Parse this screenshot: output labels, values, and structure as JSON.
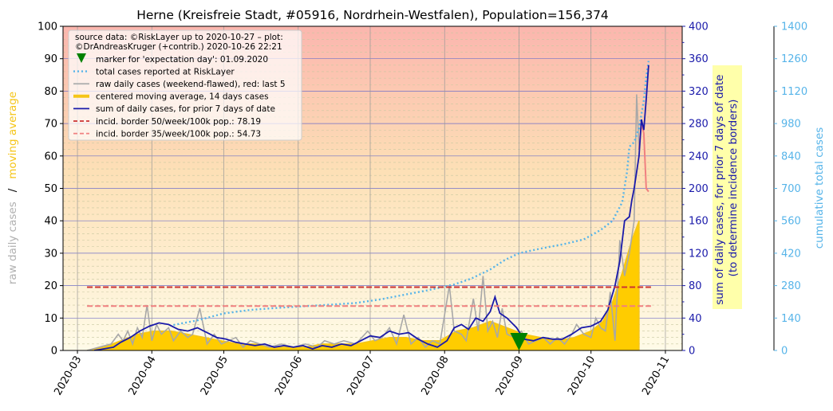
{
  "chart_data": {
    "type": "line",
    "title": "Herne (Kreisfreie Stadt, #05916, Nordrhein-Westfalen), Population=156,374",
    "xlim": [
      "2020-02-24",
      "2020-11-08"
    ],
    "x_ticks": [
      "2020-03",
      "2020-04",
      "2020-05",
      "2020-06",
      "2020-07",
      "2020-08",
      "2020-09",
      "2020-10",
      "2020-11"
    ],
    "left_axis": {
      "label_parts": [
        {
          "text": "raw daily cases",
          "color": "#b0b0b0"
        },
        {
          "text": "/",
          "color": "#000000"
        },
        {
          "text": "moving average",
          "color": "#f5c518"
        }
      ],
      "ylim": [
        0,
        100
      ],
      "ticks": [
        0,
        10,
        20,
        30,
        40,
        50,
        60,
        70,
        80,
        90,
        100
      ]
    },
    "right_axis_1": {
      "label_lines": [
        "sum of daily cases, for prior 7 days of date",
        "(to determine incidence borders)"
      ],
      "ylim": [
        0,
        400
      ],
      "ticks": [
        0,
        40,
        80,
        120,
        160,
        200,
        240,
        280,
        320,
        360,
        400
      ],
      "color": "#1a1aaa",
      "label_bg": "#ffffaa"
    },
    "right_axis_2": {
      "label": "cumulative total cases",
      "ylim": [
        0,
        1400
      ],
      "ticks": [
        0,
        140,
        280,
        420,
        560,
        700,
        840,
        980,
        1120,
        1260,
        1400
      ],
      "color": "#56b4e9"
    },
    "legend": {
      "placement": "top-left",
      "source_text": [
        "source data: ©RiskLayer up to 2020-10-27 – plot:",
        "©DrAndreasKruger (+contrib.) 2020-10-26 22:21"
      ],
      "entries": [
        {
          "label": "marker for 'expectation day': 01.09.2020",
          "kind": "marker",
          "color": "#008000"
        },
        {
          "label": "total cases reported at RiskLayer",
          "kind": "dotted",
          "color": "#56b4e9"
        },
        {
          "label": "raw daily cases (weekend-flawed), red: last 5",
          "kind": "line",
          "color": "#b0b0b0"
        },
        {
          "label": "centered moving average, 14 days cases",
          "kind": "thick",
          "color": "#f5c518"
        },
        {
          "label": "sum of daily cases, for prior 7 days of date",
          "kind": "line",
          "color": "#1a1aaa"
        },
        {
          "label": "incid. border 50/week/100k pop.: 78.19",
          "kind": "dashed",
          "color": "#cc3333"
        },
        {
          "label": "incid. border 35/week/100k pop.: 54.73",
          "kind": "dashed",
          "color": "#f08080"
        }
      ]
    },
    "incidence_borders": [
      {
        "name": "incid. border 50/week/100k pop.",
        "value": 78.19,
        "x": [
          "2020-03-05",
          "2020-10-26"
        ],
        "color": "#cc3333"
      },
      {
        "name": "incid. border 35/week/100k pop.",
        "value": 54.73,
        "x": [
          "2020-03-05",
          "2020-10-26"
        ],
        "color": "#f08080"
      }
    ],
    "expectation_marker": {
      "date": "2020-09-01",
      "value": 0
    },
    "series": [
      {
        "name": "raw daily cases (weekend-flawed), red: last 5",
        "axis": "left",
        "color": "#b0b0b0",
        "points": [
          [
            "2020-03-05",
            0
          ],
          [
            "2020-03-10",
            1
          ],
          [
            "2020-03-15",
            2
          ],
          [
            "2020-03-18",
            5
          ],
          [
            "2020-03-20",
            3
          ],
          [
            "2020-03-22",
            6
          ],
          [
            "2020-03-24",
            2
          ],
          [
            "2020-03-26",
            7
          ],
          [
            "2020-03-28",
            4
          ],
          [
            "2020-03-30",
            14
          ],
          [
            "2020-04-01",
            3
          ],
          [
            "2020-04-03",
            8
          ],
          [
            "2020-04-05",
            5
          ],
          [
            "2020-04-08",
            7
          ],
          [
            "2020-04-10",
            3
          ],
          [
            "2020-04-13",
            6
          ],
          [
            "2020-04-16",
            4
          ],
          [
            "2020-04-18",
            5
          ],
          [
            "2020-04-21",
            13
          ],
          [
            "2020-04-24",
            2
          ],
          [
            "2020-04-27",
            5
          ],
          [
            "2020-04-30",
            2
          ],
          [
            "2020-05-03",
            3
          ],
          [
            "2020-05-06",
            4
          ],
          [
            "2020-05-09",
            1
          ],
          [
            "2020-05-12",
            3
          ],
          [
            "2020-05-16",
            2
          ],
          [
            "2020-05-20",
            1
          ],
          [
            "2020-05-25",
            2
          ],
          [
            "2020-05-30",
            1
          ],
          [
            "2020-06-04",
            2
          ],
          [
            "2020-06-09",
            1
          ],
          [
            "2020-06-12",
            3
          ],
          [
            "2020-06-16",
            2
          ],
          [
            "2020-06-20",
            3
          ],
          [
            "2020-06-25",
            2
          ],
          [
            "2020-06-30",
            6
          ],
          [
            "2020-07-03",
            3
          ],
          [
            "2020-07-06",
            4
          ],
          [
            "2020-07-09",
            7
          ],
          [
            "2020-07-12",
            2
          ],
          [
            "2020-07-15",
            11
          ],
          [
            "2020-07-18",
            2
          ],
          [
            "2020-07-21",
            4
          ],
          [
            "2020-07-24",
            1
          ],
          [
            "2020-07-27",
            3
          ],
          [
            "2020-07-30",
            2
          ],
          [
            "2020-08-03",
            20
          ],
          [
            "2020-08-05",
            6
          ],
          [
            "2020-08-08",
            5
          ],
          [
            "2020-08-10",
            3
          ],
          [
            "2020-08-13",
            16
          ],
          [
            "2020-08-15",
            6
          ],
          [
            "2020-08-17",
            23
          ],
          [
            "2020-08-19",
            6
          ],
          [
            "2020-08-21",
            9
          ],
          [
            "2020-08-23",
            4
          ],
          [
            "2020-08-25",
            13
          ],
          [
            "2020-08-27",
            5
          ],
          [
            "2020-08-30",
            4
          ],
          [
            "2020-09-02",
            6
          ],
          [
            "2020-09-05",
            2
          ],
          [
            "2020-09-08",
            3
          ],
          [
            "2020-09-11",
            4
          ],
          [
            "2020-09-14",
            2
          ],
          [
            "2020-09-17",
            4
          ],
          [
            "2020-09-20",
            2
          ],
          [
            "2020-09-23",
            5
          ],
          [
            "2020-09-25",
            8
          ],
          [
            "2020-09-28",
            5
          ],
          [
            "2020-10-01",
            4
          ],
          [
            "2020-10-03",
            10
          ],
          [
            "2020-10-05",
            7
          ],
          [
            "2020-10-07",
            6
          ],
          [
            "2020-10-09",
            18
          ],
          [
            "2020-10-11",
            3
          ],
          [
            "2020-10-13",
            34
          ],
          [
            "2020-10-15",
            23
          ],
          [
            "2020-10-17",
            30
          ],
          [
            "2020-10-19",
            40
          ],
          [
            "2020-10-20",
            79
          ],
          [
            "2020-10-21",
            62
          ]
        ]
      },
      {
        "name": "raw daily cases, last 5",
        "axis": "left",
        "color": "#f08080",
        "points": [
          [
            "2020-10-21",
            62
          ],
          [
            "2020-10-22",
            70
          ],
          [
            "2020-10-23",
            67
          ],
          [
            "2020-10-24",
            50
          ],
          [
            "2020-10-25",
            49
          ]
        ]
      },
      {
        "name": "centered moving average, 14 days cases",
        "axis": "left",
        "color": "#f5c518",
        "points": [
          [
            "2020-03-05",
            0
          ],
          [
            "2020-03-12",
            1
          ],
          [
            "2020-03-19",
            3
          ],
          [
            "2020-03-26",
            5
          ],
          [
            "2020-04-02",
            6
          ],
          [
            "2020-04-09",
            6
          ],
          [
            "2020-04-16",
            5
          ],
          [
            "2020-04-23",
            4
          ],
          [
            "2020-04-30",
            3
          ],
          [
            "2020-05-07",
            2
          ],
          [
            "2020-05-14",
            2
          ],
          [
            "2020-05-21",
            1
          ],
          [
            "2020-05-28",
            1
          ],
          [
            "2020-06-04",
            1
          ],
          [
            "2020-06-11",
            2
          ],
          [
            "2020-06-18",
            2
          ],
          [
            "2020-06-25",
            2
          ],
          [
            "2020-07-02",
            3
          ],
          [
            "2020-07-09",
            4
          ],
          [
            "2020-07-16",
            4
          ],
          [
            "2020-07-23",
            3
          ],
          [
            "2020-07-30",
            3
          ],
          [
            "2020-08-06",
            6
          ],
          [
            "2020-08-13",
            7
          ],
          [
            "2020-08-20",
            9
          ],
          [
            "2020-08-27",
            7
          ],
          [
            "2020-09-03",
            5
          ],
          [
            "2020-09-10",
            4
          ],
          [
            "2020-09-17",
            3
          ],
          [
            "2020-09-24",
            4
          ],
          [
            "2020-10-01",
            6
          ],
          [
            "2020-10-06",
            9
          ],
          [
            "2020-10-10",
            15
          ],
          [
            "2020-10-14",
            24
          ],
          [
            "2020-10-18",
            34
          ],
          [
            "2020-10-20",
            38
          ],
          [
            "2020-10-21",
            40
          ]
        ]
      },
      {
        "name": "sum of daily cases, for prior 7 days of date",
        "axis": "right_1",
        "color": "#1a1aaa",
        "points": [
          [
            "2020-03-08",
            0
          ],
          [
            "2020-03-12",
            2
          ],
          [
            "2020-03-16",
            4
          ],
          [
            "2020-03-19",
            10
          ],
          [
            "2020-03-23",
            16
          ],
          [
            "2020-03-27",
            24
          ],
          [
            "2020-03-31",
            30
          ],
          [
            "2020-04-04",
            34
          ],
          [
            "2020-04-08",
            32
          ],
          [
            "2020-04-12",
            26
          ],
          [
            "2020-04-16",
            24
          ],
          [
            "2020-04-20",
            28
          ],
          [
            "2020-04-24",
            22
          ],
          [
            "2020-04-28",
            16
          ],
          [
            "2020-05-02",
            14
          ],
          [
            "2020-05-06",
            10
          ],
          [
            "2020-05-10",
            8
          ],
          [
            "2020-05-14",
            6
          ],
          [
            "2020-05-18",
            8
          ],
          [
            "2020-05-22",
            4
          ],
          [
            "2020-05-26",
            6
          ],
          [
            "2020-05-30",
            4
          ],
          [
            "2020-06-03",
            6
          ],
          [
            "2020-06-07",
            2
          ],
          [
            "2020-06-11",
            6
          ],
          [
            "2020-06-15",
            4
          ],
          [
            "2020-06-19",
            8
          ],
          [
            "2020-06-23",
            6
          ],
          [
            "2020-06-27",
            12
          ],
          [
            "2020-07-01",
            18
          ],
          [
            "2020-07-05",
            16
          ],
          [
            "2020-07-09",
            24
          ],
          [
            "2020-07-13",
            20
          ],
          [
            "2020-07-17",
            22
          ],
          [
            "2020-07-21",
            14
          ],
          [
            "2020-07-25",
            8
          ],
          [
            "2020-07-29",
            4
          ],
          [
            "2020-08-02",
            12
          ],
          [
            "2020-08-05",
            28
          ],
          [
            "2020-08-08",
            32
          ],
          [
            "2020-08-11",
            26
          ],
          [
            "2020-08-14",
            40
          ],
          [
            "2020-08-17",
            36
          ],
          [
            "2020-08-20",
            48
          ],
          [
            "2020-08-22",
            66
          ],
          [
            "2020-08-24",
            46
          ],
          [
            "2020-08-27",
            40
          ],
          [
            "2020-08-31",
            28
          ],
          [
            "2020-09-03",
            14
          ],
          [
            "2020-09-07",
            12
          ],
          [
            "2020-09-11",
            16
          ],
          [
            "2020-09-15",
            14
          ],
          [
            "2020-09-19",
            14
          ],
          [
            "2020-09-23",
            20
          ],
          [
            "2020-09-27",
            28
          ],
          [
            "2020-10-01",
            30
          ],
          [
            "2020-10-05",
            36
          ],
          [
            "2020-10-08",
            50
          ],
          [
            "2020-10-11",
            80
          ],
          [
            "2020-10-13",
            110
          ],
          [
            "2020-10-15",
            160
          ],
          [
            "2020-10-17",
            165
          ],
          [
            "2020-10-18",
            185
          ],
          [
            "2020-10-19",
            200
          ],
          [
            "2020-10-21",
            240
          ],
          [
            "2020-10-22",
            285
          ],
          [
            "2020-10-23",
            272
          ],
          [
            "2020-10-24",
            310
          ],
          [
            "2020-10-25",
            352
          ]
        ]
      },
      {
        "name": "total cases reported at RiskLayer",
        "axis": "right_2",
        "color": "#56b4e9",
        "points": [
          [
            "2020-04-10",
            110
          ],
          [
            "2020-04-20",
            130
          ],
          [
            "2020-05-01",
            160
          ],
          [
            "2020-05-12",
            175
          ],
          [
            "2020-05-25",
            185
          ],
          [
            "2020-06-05",
            192
          ],
          [
            "2020-06-15",
            198
          ],
          [
            "2020-06-25",
            205
          ],
          [
            "2020-07-05",
            220
          ],
          [
            "2020-07-15",
            240
          ],
          [
            "2020-07-25",
            260
          ],
          [
            "2020-08-05",
            285
          ],
          [
            "2020-08-12",
            310
          ],
          [
            "2020-08-20",
            350
          ],
          [
            "2020-08-26",
            390
          ],
          [
            "2020-09-01",
            420
          ],
          [
            "2020-09-10",
            440
          ],
          [
            "2020-09-20",
            460
          ],
          [
            "2020-09-28",
            480
          ],
          [
            "2020-10-05",
            520
          ],
          [
            "2020-10-10",
            560
          ],
          [
            "2020-10-14",
            640
          ],
          [
            "2020-10-16",
            770
          ],
          [
            "2020-10-17",
            880
          ],
          [
            "2020-10-19",
            900
          ],
          [
            "2020-10-21",
            960
          ],
          [
            "2020-10-23",
            1080
          ],
          [
            "2020-10-24",
            1180
          ],
          [
            "2020-10-25",
            1250
          ]
        ]
      }
    ]
  }
}
